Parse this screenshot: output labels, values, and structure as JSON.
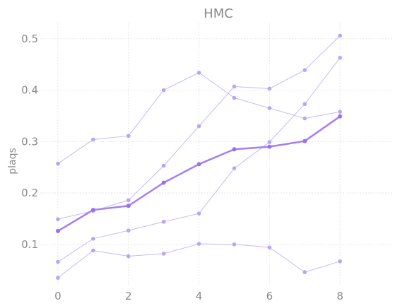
{
  "chart_data": {
    "type": "line",
    "title": "HMC",
    "xlabel": "",
    "ylabel": "plaqs",
    "xlim": [
      -0.5,
      9.5
    ],
    "ylim": [
      0.02,
      0.53
    ],
    "xticks": [
      0,
      2,
      4,
      6,
      8
    ],
    "yticks": [
      0.1,
      0.2,
      0.3,
      0.4,
      0.5
    ],
    "x": [
      0,
      1,
      2,
      3,
      4,
      5,
      6,
      7,
      8
    ],
    "grid": true,
    "colors": {
      "thin_line": "#c9b9f7",
      "thin_marker": "#b9a4f5",
      "mean_line": "#a57ef6",
      "mean_marker": "#9a6ff3"
    },
    "series": [
      {
        "values": [
          0.257,
          0.304,
          0.311,
          0.4,
          0.434,
          0.385,
          0.365,
          0.345,
          0.358
        ]
      },
      {
        "values": [
          0.149,
          0.165,
          0.186,
          0.253,
          0.33,
          0.407,
          0.403,
          0.439,
          0.506
        ]
      },
      {
        "values": [
          0.066,
          0.111,
          0.127,
          0.144,
          0.16,
          0.248,
          0.299,
          0.373,
          0.463
        ]
      },
      {
        "values": [
          0.035,
          0.088,
          0.077,
          0.082,
          0.101,
          0.1,
          0.094,
          0.046,
          0.067
        ]
      },
      {
        "values": [
          0.126,
          0.167,
          0.175,
          0.22,
          0.256,
          0.285,
          0.29,
          0.301,
          0.349
        ],
        "emphasis": true
      }
    ]
  }
}
